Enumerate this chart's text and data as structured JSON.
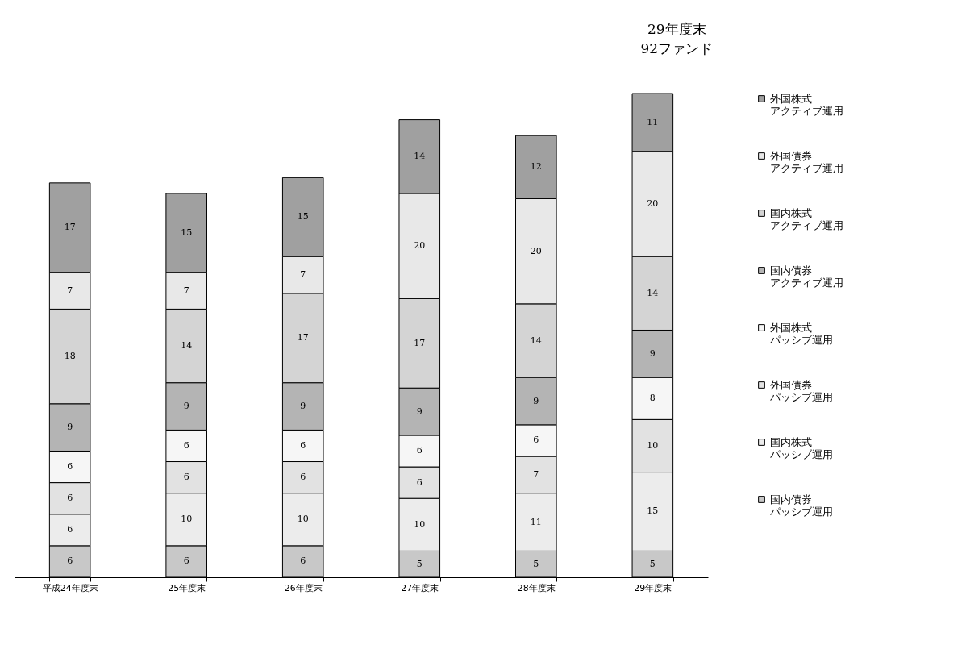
{
  "chart_data": {
    "type": "bar",
    "stacked": true,
    "data_labels": true,
    "legend": "right",
    "categories": [
      "平成24年度末",
      "25年度末",
      "26年度末",
      "27年度末",
      "28年度末",
      "29年度末"
    ],
    "series": [
      {
        "name": "国内債券パッシブ運用",
        "color": "#c8c8c8",
        "values": [
          6,
          6,
          6,
          5,
          5,
          5
        ]
      },
      {
        "name": "国内株式パッシブ運用",
        "color": "#ececec",
        "values": [
          6,
          10,
          10,
          10,
          11,
          15
        ]
      },
      {
        "name": "外国債券パッシブ運用",
        "color": "#e2e2e2",
        "values": [
          6,
          6,
          6,
          6,
          7,
          10
        ]
      },
      {
        "name": "外国株式パッシブ運用",
        "color": "#f6f6f6",
        "values": [
          6,
          6,
          6,
          6,
          6,
          8
        ]
      },
      {
        "name": "国内債券アクティブ運用",
        "color": "#b4b4b4",
        "values": [
          9,
          9,
          9,
          9,
          9,
          9
        ]
      },
      {
        "name": "国内株式アクティブ運用",
        "color": "#d4d4d4",
        "values": [
          18,
          14,
          17,
          17,
          14,
          14
        ]
      },
      {
        "name": "外国債券アクティブ運用",
        "color": "#e8e8e8",
        "values": [
          7,
          7,
          7,
          20,
          20,
          20
        ]
      },
      {
        "name": "外国株式アクティブ運用",
        "color": "#a0a0a0",
        "values": [
          17,
          15,
          15,
          14,
          12,
          11
        ]
      }
    ],
    "annotations": [
      {
        "text": "29年度末\n92ファンド",
        "x": "29年度末",
        "y": 92
      }
    ]
  }
}
